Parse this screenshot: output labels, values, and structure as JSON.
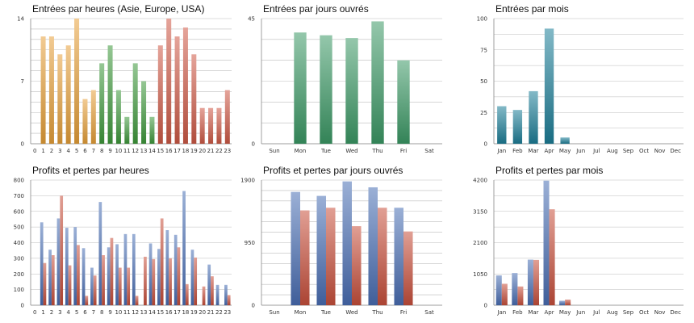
{
  "chart_data": [
    {
      "type": "bar",
      "title": "Entrées par heures (Asie, Europe, USA)",
      "categories": [
        "0",
        "1",
        "2",
        "3",
        "4",
        "5",
        "6",
        "7",
        "8",
        "9",
        "10",
        "11",
        "12",
        "13",
        "14",
        "15",
        "16",
        "17",
        "18",
        "19",
        "20",
        "21",
        "22",
        "23"
      ],
      "values": [
        0,
        12,
        12,
        10,
        11,
        14,
        5,
        6,
        9,
        11,
        6,
        3,
        9,
        7,
        3,
        11,
        14,
        12,
        13,
        10,
        4,
        4,
        4,
        6
      ],
      "ylim": [
        0,
        14
      ],
      "yticks": [
        0,
        7,
        14
      ],
      "grid": true,
      "bar_colors": [
        "#e8a13a",
        "#e8a13a",
        "#e8a13a",
        "#e8a13a",
        "#e8a13a",
        "#e8a13a",
        "#e8a13a",
        "#e8a13a",
        "#3f9a3c",
        "#3f9a3c",
        "#3f9a3c",
        "#3f9a3c",
        "#3f9a3c",
        "#3f9a3c",
        "#3f9a3c",
        "#cf5a47",
        "#cf5a47",
        "#cf5a47",
        "#cf5a47",
        "#cf5a47",
        "#cf5a47",
        "#cf5a47",
        "#cf5a47",
        "#cf5a47"
      ]
    },
    {
      "type": "bar",
      "title": "Entrées par jours ouvrés",
      "categories": [
        "Sun",
        "Mon",
        "Tue",
        "Wed",
        "Thu",
        "Fri",
        "Sat"
      ],
      "values": [
        0,
        40,
        39,
        38,
        44,
        30,
        0
      ],
      "ylim": [
        0,
        45
      ],
      "yticks": [
        0,
        45
      ],
      "grid": true,
      "color": "#3c9a66"
    },
    {
      "type": "bar",
      "title": "Entrées par mois",
      "categories": [
        "Jan",
        "Feb",
        "Mar",
        "Apr",
        "May",
        "Jun",
        "Jul",
        "Aug",
        "Sep",
        "Oct",
        "Nov",
        "Dec"
      ],
      "values": [
        30,
        27,
        42,
        92,
        5,
        0,
        0,
        0,
        0,
        0,
        0,
        0
      ],
      "ylim": [
        0,
        100
      ],
      "yticks": [
        0,
        25,
        50,
        75,
        100
      ],
      "grid": true,
      "color": "#1d7f99"
    },
    {
      "type": "bar",
      "title": "Profits et pertes par heures",
      "categories": [
        "0",
        "1",
        "2",
        "3",
        "4",
        "5",
        "6",
        "7",
        "8",
        "9",
        "10",
        "11",
        "12",
        "13",
        "14",
        "15",
        "16",
        "17",
        "18",
        "19",
        "20",
        "21",
        "22",
        "23"
      ],
      "series": [
        {
          "color": "#4a6fb5",
          "values": [
            0,
            530,
            355,
            555,
            495,
            500,
            365,
            240,
            660,
            370,
            390,
            455,
            455,
            0,
            395,
            360,
            480,
            450,
            730,
            355,
            0,
            260,
            130,
            130
          ]
        },
        {
          "color": "#c9503c",
          "values": [
            0,
            270,
            320,
            700,
            255,
            385,
            60,
            190,
            320,
            430,
            240,
            240,
            60,
            310,
            295,
            555,
            300,
            370,
            135,
            305,
            120,
            185,
            0,
            65
          ]
        }
      ],
      "ylim": [
        0,
        800
      ],
      "yticks": [
        0,
        100,
        200,
        300,
        400,
        500,
        600,
        700,
        800
      ],
      "grid": true
    },
    {
      "type": "bar",
      "title": "Profits et pertes par jours ouvrés",
      "categories": [
        "Sun",
        "Mon",
        "Tue",
        "Wed",
        "Thu",
        "Fri",
        "Sat"
      ],
      "series": [
        {
          "color": "#4a6fb5",
          "values": [
            0,
            1720,
            1660,
            1880,
            1790,
            1480,
            0
          ]
        },
        {
          "color": "#c9503c",
          "values": [
            0,
            1440,
            1480,
            1200,
            1480,
            1120,
            0
          ]
        }
      ],
      "ylim": [
        0,
        1900
      ],
      "yticks": [
        0,
        950,
        1900
      ],
      "grid": true
    },
    {
      "type": "bar",
      "title": "Profits et pertes par mois",
      "categories": [
        "Jan",
        "Feb",
        "Mar",
        "Apr",
        "May",
        "Jun",
        "Jul",
        "Aug",
        "Sep",
        "Oct",
        "Nov",
        "Dec"
      ],
      "series": [
        {
          "color": "#4a6fb5",
          "values": [
            1000,
            1080,
            1530,
            4180,
            150,
            0,
            0,
            0,
            0,
            0,
            0,
            0
          ]
        },
        {
          "color": "#c9503c",
          "values": [
            720,
            630,
            1520,
            3220,
            190,
            0,
            0,
            0,
            0,
            0,
            0,
            0
          ]
        }
      ],
      "ylim": [
        0,
        4200
      ],
      "yticks": [
        0,
        1050,
        2100,
        3150,
        4200
      ],
      "grid": true
    }
  ]
}
